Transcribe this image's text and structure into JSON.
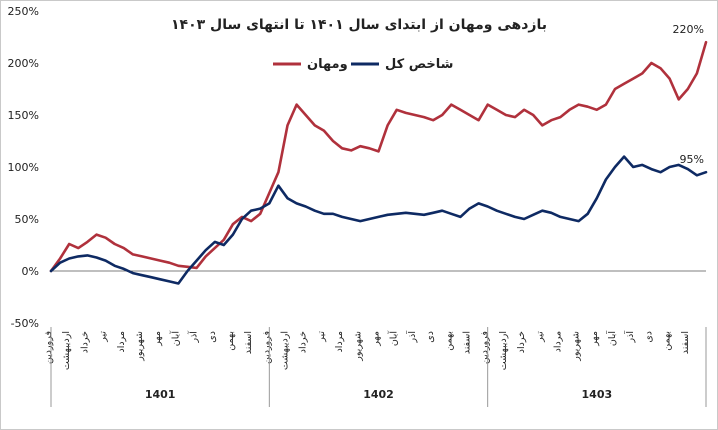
{
  "chart_data": {
    "type": "line",
    "title": "بازدهی ومهان از ابتدای سال ۱۴۰۱ تا انتهای سال ۱۴۰۳",
    "y_ticks": [
      "250%",
      "200%",
      "150%",
      "100%",
      "50%",
      "0%",
      "-50%"
    ],
    "ylim": [
      -50,
      250
    ],
    "grid": false,
    "legend_position": "top-center",
    "colors": {
      "vamahan": "#b0313c",
      "index": "#0e2a63"
    },
    "month_labels": [
      "فروردین",
      "اردیبهشت",
      "خرداد",
      "تیر",
      "مرداد",
      "شهریور",
      "مهر",
      "آبان",
      "آذر",
      "دی",
      "بهمن",
      "اسفند"
    ],
    "years": [
      "1401",
      "1402",
      "1403"
    ],
    "annotations": [
      {
        "text": "220%",
        "series": "ومهان"
      },
      {
        "text": "95%",
        "series": "شاخص کل"
      }
    ],
    "x": [
      0,
      0.5,
      1,
      1.5,
      2,
      2.5,
      3,
      3.5,
      4,
      4.5,
      5,
      5.5,
      6,
      6.5,
      7,
      7.5,
      8,
      8.5,
      9,
      9.5,
      10,
      10.5,
      11,
      11.5,
      12,
      12.5,
      13,
      13.5,
      14,
      14.5,
      15,
      15.5,
      16,
      16.5,
      17,
      17.5,
      18,
      18.5,
      19,
      19.5,
      20,
      20.5,
      21,
      21.5,
      22,
      22.5,
      23,
      23.5,
      24,
      24.5,
      25,
      25.5,
      26,
      26.5,
      27,
      27.5,
      28,
      28.5,
      29,
      29.5,
      30,
      30.5,
      31,
      31.5,
      32,
      32.5,
      33,
      33.5,
      34,
      34.5,
      35,
      35.5,
      36
    ],
    "series": [
      {
        "name": "ومهان",
        "values": [
          0,
          12,
          26,
          22,
          28,
          35,
          32,
          26,
          22,
          16,
          14,
          12,
          10,
          8,
          5,
          4,
          3,
          14,
          22,
          30,
          45,
          52,
          48,
          55,
          75,
          95,
          140,
          160,
          150,
          140,
          135,
          125,
          118,
          116,
          120,
          118,
          115,
          140,
          155,
          152,
          150,
          148,
          145,
          150,
          160,
          155,
          150,
          145,
          160,
          155,
          150,
          148,
          155,
          150,
          140,
          145,
          148,
          155,
          160,
          158,
          155,
          160,
          175,
          180,
          185,
          190,
          200,
          195,
          185,
          165,
          175,
          190,
          220
        ]
      },
      {
        "name": "شاخص کل",
        "values": [
          0,
          8,
          12,
          14,
          15,
          13,
          10,
          5,
          2,
          -2,
          -4,
          -6,
          -8,
          -10,
          -12,
          0,
          10,
          20,
          28,
          25,
          35,
          50,
          58,
          60,
          65,
          82,
          70,
          65,
          62,
          58,
          55,
          55,
          52,
          50,
          48,
          50,
          52,
          54,
          55,
          56,
          55,
          54,
          56,
          58,
          55,
          52,
          60,
          65,
          62,
          58,
          55,
          52,
          50,
          54,
          58,
          56,
          52,
          50,
          48,
          55,
          70,
          88,
          100,
          110,
          100,
          102,
          98,
          95,
          100,
          102,
          98,
          92,
          95
        ]
      }
    ]
  }
}
